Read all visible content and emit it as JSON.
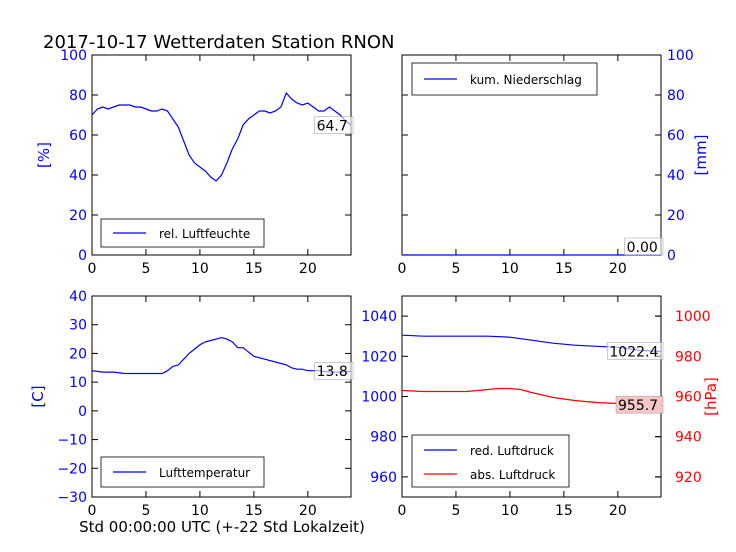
{
  "title": "2017-10-17 Wetterdaten Station RNON",
  "xlabel": "Std 00:00:00 UTC (+-22 Std Lokalzeit)",
  "colors": {
    "blue": "#0000ff",
    "red": "#ff0000",
    "black": "#000000",
    "red_fill": "#f6c6c6"
  },
  "chart_data": [
    {
      "type": "line",
      "panel": "top-left",
      "ylabel": "[%]",
      "ylabel_color": "#0000ff",
      "ylabel_side": "left",
      "xlim": [
        0,
        24
      ],
      "ylim": [
        0,
        100
      ],
      "xticks": [
        "0",
        "5",
        "10",
        "15",
        "20"
      ],
      "yticks": [
        "0",
        "20",
        "40",
        "60",
        "80",
        "100"
      ],
      "ytick_color": "#0000ff",
      "legend": "lower-left",
      "series": [
        {
          "name": "rel. Luftfeuchte",
          "color": "#0000ff",
          "x": [
            0,
            0.5,
            1,
            1.5,
            2,
            2.5,
            3,
            3.5,
            4,
            4.5,
            5,
            5.5,
            6,
            6.5,
            7,
            7.5,
            8,
            8.5,
            9,
            9.5,
            10,
            10.5,
            11,
            11.5,
            12,
            12.5,
            13,
            13.5,
            14,
            14.5,
            15,
            15.5,
            16,
            16.5,
            17,
            17.5,
            18,
            18.5,
            19,
            19.5,
            20,
            20.5,
            21,
            21.5,
            22,
            22.5,
            23,
            23.5,
            24
          ],
          "y": [
            70,
            73,
            74,
            73,
            74,
            75,
            75,
            75,
            74,
            74,
            73,
            72,
            72,
            73,
            72,
            68,
            64,
            57,
            50,
            46,
            44,
            42,
            39,
            37,
            40,
            46,
            53,
            58,
            65,
            68,
            70,
            72,
            72,
            71,
            72,
            74,
            81,
            78,
            76,
            75,
            76,
            74,
            72,
            72,
            74,
            72,
            70,
            67,
            65
          ]
        }
      ],
      "annotation": {
        "text": "64.7",
        "value": 64.7
      }
    },
    {
      "type": "line",
      "panel": "top-right",
      "ylabel": "[mm]",
      "ylabel_color": "#0000ff",
      "ylabel_side": "right",
      "xlim": [
        0,
        24
      ],
      "ylim": [
        0,
        100
      ],
      "xticks": [
        "0",
        "5",
        "10",
        "15",
        "20"
      ],
      "yticks": [
        "0",
        "20",
        "40",
        "60",
        "80",
        "100"
      ],
      "ytick_color": "#0000ff",
      "legend": "upper-left",
      "series": [
        {
          "name": "kum. Niederschlag",
          "color": "#0000ff",
          "x": [
            0,
            24
          ],
          "y": [
            0,
            0
          ]
        }
      ],
      "annotation": {
        "text": "0.00",
        "value": 0.0
      }
    },
    {
      "type": "line",
      "panel": "bottom-left",
      "ylabel": "[C]",
      "ylabel_color": "#0000ff",
      "ylabel_side": "left",
      "xlim": [
        0,
        24
      ],
      "ylim": [
        -30,
        40
      ],
      "xticks": [
        "0",
        "5",
        "10",
        "15",
        "20"
      ],
      "yticks": [
        "−30",
        "−20",
        "−10",
        "0",
        "10",
        "20",
        "30",
        "40"
      ],
      "ytick_color": "#0000ff",
      "legend": "lower-left",
      "series": [
        {
          "name": "Lufttemperatur",
          "color": "#0000ff",
          "x": [
            0,
            1,
            2,
            3,
            4,
            5,
            6,
            6.5,
            7,
            7.5,
            8,
            8.5,
            9,
            9.5,
            10,
            10.5,
            11,
            11.5,
            12,
            12.5,
            13,
            13.5,
            14,
            15,
            16,
            17,
            18,
            18.5,
            19,
            19.5,
            20,
            20.5,
            21,
            22,
            23,
            24
          ],
          "y": [
            14,
            13.5,
            13.5,
            13,
            13,
            13,
            13,
            13,
            14,
            15.5,
            16,
            18,
            20,
            21.5,
            23,
            24,
            24.5,
            25,
            25.5,
            25,
            24,
            22,
            22,
            19,
            18,
            17,
            16,
            15,
            14.5,
            14.5,
            14,
            14,
            14,
            13.5,
            13.5,
            13.8
          ]
        }
      ],
      "annotation": {
        "text": "13.8",
        "value": 13.8
      }
    },
    {
      "type": "line",
      "panel": "bottom-right",
      "ylabel": "[hPa]",
      "ylabel_color": "#ff0000",
      "ylabel_side": "right",
      "xlim": [
        0,
        24
      ],
      "ylim": [
        950,
        1050
      ],
      "y2lim": [
        910,
        1010
      ],
      "xticks": [
        "0",
        "5",
        "10",
        "15",
        "20"
      ],
      "yticks": [
        "960",
        "980",
        "1000",
        "1020",
        "1040"
      ],
      "ytick_color": "#0000ff",
      "y2ticks": [
        "920",
        "940",
        "960",
        "980",
        "1000"
      ],
      "y2tick_color": "#ff0000",
      "legend": "lower-left",
      "series": [
        {
          "name": "red. Luftdruck",
          "color": "#0000ff",
          "axis": "left",
          "x": [
            0,
            2,
            4,
            6,
            8,
            10,
            12,
            14,
            16,
            18,
            20,
            22,
            24
          ],
          "y": [
            1030.5,
            1030,
            1030,
            1030,
            1030,
            1029.5,
            1028,
            1026.5,
            1025.5,
            1025,
            1024.5,
            1023,
            1022.4
          ]
        },
        {
          "name": "abs. Luftdruck",
          "color": "#ff0000",
          "axis": "right",
          "x": [
            0,
            2,
            4,
            6,
            7,
            8,
            9,
            10,
            11,
            12,
            14,
            16,
            18,
            20,
            22,
            24
          ],
          "y": [
            963,
            962.5,
            962.5,
            962.5,
            963,
            963.5,
            964,
            964,
            963.5,
            962,
            959.5,
            958,
            957,
            956.5,
            956,
            955.7
          ]
        }
      ],
      "annotations": [
        {
          "text": "1022.4",
          "value": 1022.4,
          "axis": "left"
        },
        {
          "text": "955.7",
          "value": 955.7,
          "axis": "right"
        }
      ]
    }
  ]
}
